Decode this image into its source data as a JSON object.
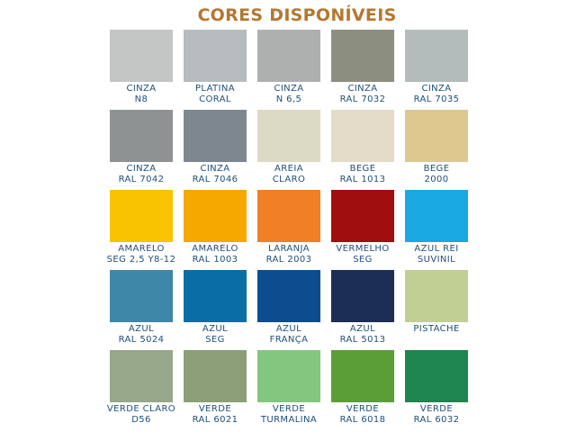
{
  "title": "CORES DISPONÍVEIS",
  "swatches": [
    {
      "lines": [
        "CINZA",
        "N8"
      ],
      "color": "#c3c6c4"
    },
    {
      "lines": [
        "PLATINA",
        "CORAL"
      ],
      "color": "#b6bbbd"
    },
    {
      "lines": [
        "CINZA",
        "N 6,5"
      ],
      "color": "#aeb0af"
    },
    {
      "lines": [
        "CINZA",
        "RAL 7032"
      ],
      "color": "#8c8f80"
    },
    {
      "lines": [
        "CINZA",
        "RAL 7035"
      ],
      "color": "#b3bcba"
    },
    {
      "lines": [
        "CINZA",
        "RAL 7042"
      ],
      "color": "#8f9292"
    },
    {
      "lines": [
        "CINZA",
        "RAL 7046"
      ],
      "color": "#7e878f"
    },
    {
      "lines": [
        "AREIA",
        "CLARO"
      ],
      "color": "#dcdac5"
    },
    {
      "lines": [
        "BEGE",
        "RAL 1013"
      ],
      "color": "#e4dbc9"
    },
    {
      "lines": [
        "BEGE",
        "2000"
      ],
      "color": "#dec890"
    },
    {
      "lines": [
        "AMARELO",
        "SEG 2,5 Y8-12"
      ],
      "color": "#f8c300"
    },
    {
      "lines": [
        "AMARELO",
        "RAL 1003"
      ],
      "color": "#f6a800"
    },
    {
      "lines": [
        "LARANJA",
        "RAL 2003"
      ],
      "color": "#f07f26"
    },
    {
      "lines": [
        "VERMELHO",
        "SEG"
      ],
      "color": "#a10e10"
    },
    {
      "lines": [
        "AZUL REI",
        "SUVINIL"
      ],
      "color": "#1aa8e0"
    },
    {
      "lines": [
        "AZUL",
        "RAL 5024"
      ],
      "color": "#3e87a8"
    },
    {
      "lines": [
        "AZUL",
        "SEG"
      ],
      "color": "#0a6da6"
    },
    {
      "lines": [
        "AZUL",
        "FRANÇA"
      ],
      "color": "#0b4d8f"
    },
    {
      "lines": [
        "AZUL",
        "RAL 5013"
      ],
      "color": "#1c2e55"
    },
    {
      "lines": [
        "PISTACHE"
      ],
      "color": "#c1cf92"
    },
    {
      "lines": [
        "VERDE CLARO",
        "D56"
      ],
      "color": "#97a78a"
    },
    {
      "lines": [
        "VERDE",
        "RAL 6021"
      ],
      "color": "#8c9f78"
    },
    {
      "lines": [
        "VERDE",
        "TURMALINA"
      ],
      "color": "#82c67f"
    },
    {
      "lines": [
        "VERDE",
        "RAL 6018"
      ],
      "color": "#5b9e37"
    },
    {
      "lines": [
        "VERDE",
        "RAL 6032"
      ],
      "color": "#1e8450"
    }
  ]
}
